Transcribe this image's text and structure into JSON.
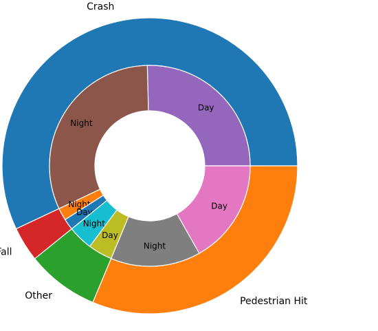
{
  "chart_data": {
    "type": "pie",
    "subtype": "nested-donut",
    "title": "",
    "outer_ring": [
      {
        "label": "Crash",
        "value": 57.0,
        "color": "#1f77b4"
      },
      {
        "label": "Occupant Fall",
        "value": 3.8,
        "color": "#d62728"
      },
      {
        "label": "Other",
        "value": 7.9,
        "color": "#2ca02c"
      },
      {
        "label": "Pedestrian Hit",
        "value": 31.3,
        "color": "#ff7f0e"
      }
    ],
    "inner_ring": [
      {
        "label": "Day",
        "parent": "Crash",
        "value": 25.4,
        "color": "#9467bd"
      },
      {
        "label": "Night",
        "parent": "Crash",
        "value": 31.6,
        "color": "#8c564b"
      },
      {
        "label": "Night",
        "parent": "Occupant Fall",
        "value": 2.0,
        "color": "#ff7f0e"
      },
      {
        "label": "Day",
        "parent": "Occupant Fall",
        "value": 1.8,
        "color": "#1f77b4"
      },
      {
        "label": "Night",
        "parent": "Other",
        "value": 4.0,
        "color": "#17becf"
      },
      {
        "label": "Day",
        "parent": "Other",
        "value": 3.9,
        "color": "#bcbd22"
      },
      {
        "label": "Night",
        "parent": "Pedestrian Hit",
        "value": 14.5,
        "color": "#7f7f7f"
      },
      {
        "label": "Day",
        "parent": "Pedestrian Hit",
        "value": 16.8,
        "color": "#e377c2"
      }
    ]
  }
}
